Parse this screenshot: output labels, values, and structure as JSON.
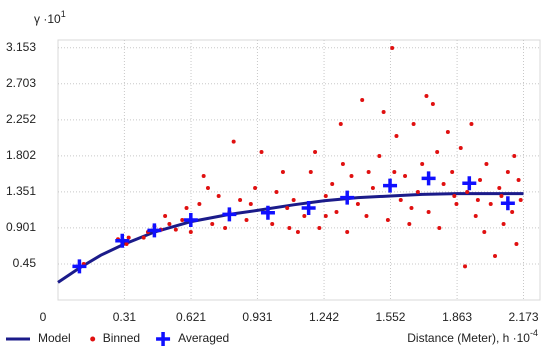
{
  "chart_data": {
    "type": "scatter",
    "y_label": "γ ·10",
    "y_label_exponent": "1",
    "x_label": "Distance (Meter), h ·10",
    "x_label_exponent": "-4",
    "xlim": [
      0,
      2.25
    ],
    "ylim": [
      0,
      3.25
    ],
    "xticks": [
      0,
      0.31,
      0.621,
      0.931,
      1.242,
      1.552,
      1.863,
      2.173
    ],
    "yticks": [
      0.45,
      0.901,
      1.351,
      1.802,
      2.252,
      2.703,
      3.153
    ],
    "grid": true,
    "legend": "bottom",
    "series": [
      {
        "name": "Model",
        "color": "#1b1b8a",
        "mark": "line",
        "x": [
          0,
          0.1,
          0.2,
          0.31,
          0.45,
          0.621,
          0.8,
          0.931,
          1.1,
          1.242,
          1.4,
          1.552,
          1.7,
          1.863,
          2.0,
          2.173
        ],
        "values": [
          0.22,
          0.4,
          0.56,
          0.7,
          0.85,
          0.98,
          1.07,
          1.12,
          1.19,
          1.24,
          1.28,
          1.3,
          1.32,
          1.33,
          1.33,
          1.33
        ]
      },
      {
        "name": "Binned",
        "color": "#e01010",
        "mark": "dot",
        "x": [
          0.12,
          0.3,
          0.28,
          0.33,
          0.32,
          0.4,
          0.42,
          0.45,
          0.48,
          0.52,
          0.55,
          0.5,
          0.58,
          0.6,
          0.62,
          0.66,
          0.68,
          0.7,
          0.72,
          0.75,
          0.78,
          0.8,
          0.82,
          0.85,
          0.88,
          0.9,
          0.92,
          0.95,
          0.98,
          1.0,
          1.02,
          1.05,
          1.07,
          1.1,
          1.12,
          1.15,
          1.18,
          1.2,
          1.22,
          1.25,
          1.28,
          1.3,
          1.32,
          1.33,
          1.35,
          1.37,
          1.4,
          1.42,
          1.44,
          1.47,
          1.5,
          1.52,
          1.54,
          1.56,
          1.57,
          1.58,
          1.6,
          1.62,
          1.64,
          1.66,
          1.68,
          1.7,
          1.72,
          1.73,
          1.75,
          1.77,
          1.78,
          1.8,
          1.82,
          1.84,
          1.86,
          1.88,
          1.9,
          1.91,
          1.93,
          1.95,
          1.97,
          1.99,
          2.0,
          2.02,
          2.04,
          2.06,
          2.08,
          2.1,
          2.12,
          2.14,
          2.15,
          2.16,
          2.13,
          2.07,
          1.96,
          1.85,
          1.65,
          1.45,
          1.25,
          1.08
        ],
        "values": [
          0.45,
          0.72,
          0.76,
          0.78,
          0.7,
          0.78,
          0.85,
          0.92,
          0.88,
          0.95,
          0.88,
          1.05,
          1.0,
          1.15,
          0.85,
          1.2,
          1.55,
          1.4,
          0.95,
          1.3,
          0.9,
          1.1,
          1.98,
          1.25,
          1.0,
          1.2,
          1.4,
          1.85,
          1.1,
          0.95,
          1.35,
          1.6,
          1.15,
          1.25,
          0.85,
          1.05,
          1.6,
          1.85,
          0.9,
          1.3,
          1.45,
          1.1,
          2.2,
          1.7,
          0.85,
          1.55,
          1.2,
          2.5,
          1.05,
          1.4,
          1.8,
          2.35,
          1.0,
          3.15,
          1.6,
          2.05,
          1.25,
          1.55,
          0.95,
          2.2,
          1.35,
          1.7,
          2.55,
          1.1,
          2.45,
          1.85,
          0.9,
          1.45,
          2.1,
          1.6,
          1.2,
          1.9,
          0.42,
          1.35,
          2.2,
          1.05,
          1.5,
          0.85,
          1.7,
          1.2,
          0.55,
          1.4,
          0.95,
          1.6,
          1.1,
          0.7,
          1.5,
          1.25,
          1.8,
          1.3,
          1.25,
          1.3,
          1.15,
          1.6,
          1.05,
          0.9
        ]
      },
      {
        "name": "Averaged",
        "color": "#1010ff",
        "mark": "cross",
        "x": [
          0.1,
          0.3,
          0.45,
          0.62,
          0.8,
          0.98,
          1.17,
          1.35,
          1.55,
          1.73,
          1.92,
          2.1
        ],
        "values": [
          0.42,
          0.74,
          0.87,
          1.0,
          1.07,
          1.09,
          1.15,
          1.28,
          1.43,
          1.52,
          1.46,
          1.21
        ]
      }
    ]
  }
}
